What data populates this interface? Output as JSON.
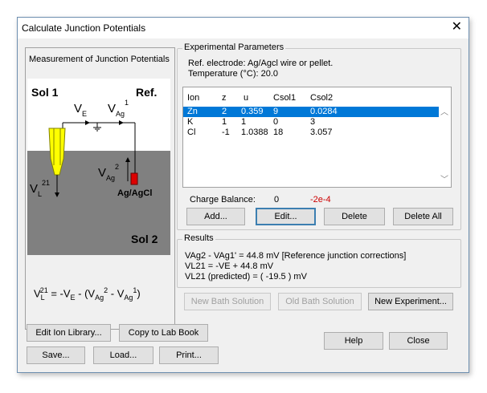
{
  "window": {
    "title": "Calculate Junction Potentials",
    "close_glyph": "✕"
  },
  "left_panel": {
    "heading": "Measurement of Junction Potentials",
    "diagram": {
      "sol1": "Sol 1",
      "ref": "Ref.",
      "sol2": "Sol 2",
      "ve_main": "V",
      "ve_sub": "E",
      "vag1_main": "V",
      "vag1_sub": "Ag",
      "vag1_sup": "1",
      "vag2_main": "V",
      "vag2_sub": "Ag",
      "vag2_sup": "2",
      "vl_main": "V",
      "vl_sub": "L",
      "vl_sup": "21",
      "electrode": "Ag/AgCl"
    },
    "equation": {
      "vl": "V",
      "vl_sub": "L",
      "vl_sup": "21",
      "eq": " = -V",
      "ve_sub": "E",
      "minus": " - (V",
      "ag_sub": "Ag",
      "ag2_sup": "2",
      "dash": " - V",
      "ag_sub2": "Ag",
      "ag1_sup": "1",
      "close": ")"
    }
  },
  "experimental": {
    "legend": "Experimental Parameters",
    "ref_electrode": "Ref. electrode: Ag/Agcl wire or pellet.",
    "temperature": "Temperature (°C): 20.0",
    "columns": [
      "Ion",
      "z",
      "u",
      "Csol1",
      "Csol2"
    ],
    "rows": [
      [
        "Zn",
        "2",
        "0.359",
        "9",
        "0.0284"
      ],
      [
        "K",
        "1",
        "1",
        "0",
        "3"
      ],
      [
        "Cl",
        "-1",
        "1.0388",
        "18",
        "3.057"
      ]
    ],
    "charge_balance_label": "Charge Balance:",
    "charge_balance_value": "0",
    "charge_balance_error": "-2e-4",
    "buttons": {
      "add": "Add...",
      "edit": "Edit...",
      "delete": "Delete",
      "delete_all": "Delete All"
    }
  },
  "results": {
    "legend": "Results",
    "line1": "VAg2 - VAg1' = 44.8 mV [Reference junction corrections]",
    "line2": "VL21 = -VE + 44.8 mV",
    "line3": "VL21 (predicted) = ( -19.5 ) mV"
  },
  "bath_buttons": {
    "new_bath": "New Bath Solution",
    "old_bath": "Old Bath Solution",
    "new_experiment": "New Experiment..."
  },
  "bottom_buttons": {
    "edit_ion_library": "Edit Ion Library...",
    "copy_lab_book": "Copy to Lab Book",
    "save": "Save...",
    "load": "Load...",
    "print": "Print...",
    "help": "Help",
    "close": "Close"
  },
  "colors": {
    "selection": "#0078d7",
    "sol2_bg": "#808080",
    "electrode": "#ffff00",
    "ref_electrode": "#dd0000",
    "error_text": "#cc0000"
  }
}
